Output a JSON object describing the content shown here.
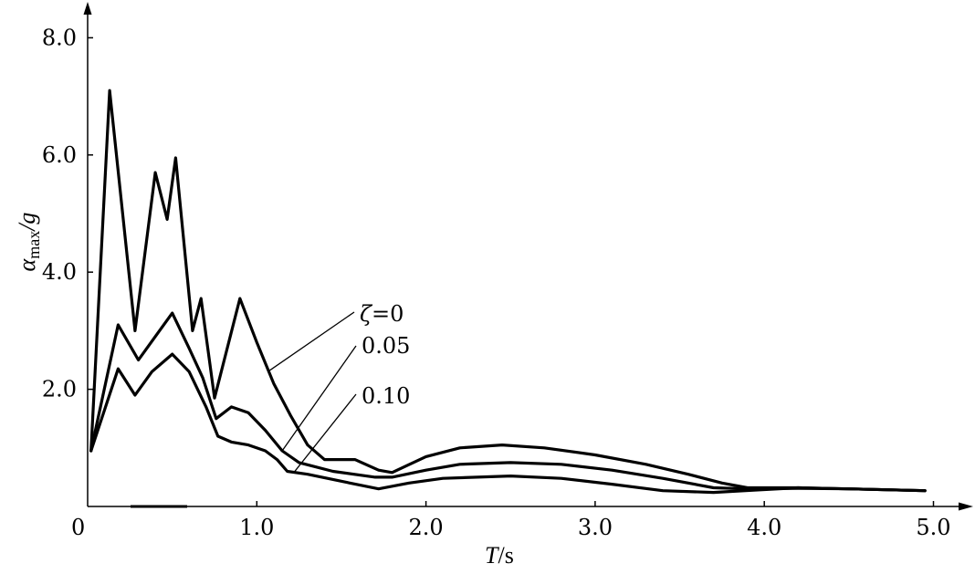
{
  "chart_data": {
    "type": "line",
    "xlabel": {
      "main": "T",
      "unit": "/s"
    },
    "ylabel": {
      "symbol": "α",
      "subscript": "max",
      "suffix": "/g"
    },
    "xlim": [
      0,
      5.2
    ],
    "ylim": [
      0,
      8.6
    ],
    "x_ticks": [
      {
        "value": 1.0,
        "label": "1.0"
      },
      {
        "value": 2.0,
        "label": "2.0"
      },
      {
        "value": 3.0,
        "label": "3.0"
      },
      {
        "value": 4.0,
        "label": "4.0"
      },
      {
        "value": 5.0,
        "label": "5.0"
      }
    ],
    "y_ticks": [
      {
        "value": 2.0,
        "label": "2.0"
      },
      {
        "value": 4.0,
        "label": "4.0"
      },
      {
        "value": 6.0,
        "label": "6.0"
      },
      {
        "value": 8.0,
        "label": "8.0"
      }
    ],
    "origin_label": "0",
    "grid": false,
    "series": [
      {
        "name": "ζ=0",
        "points": [
          [
            0.02,
            0.95
          ],
          [
            0.13,
            7.1
          ],
          [
            0.28,
            3.0
          ],
          [
            0.4,
            5.7
          ],
          [
            0.47,
            4.9
          ],
          [
            0.52,
            5.95
          ],
          [
            0.62,
            3.0
          ],
          [
            0.67,
            3.55
          ],
          [
            0.75,
            1.85
          ],
          [
            0.9,
            3.55
          ],
          [
            1.0,
            2.8
          ],
          [
            1.1,
            2.1
          ],
          [
            1.2,
            1.55
          ],
          [
            1.3,
            1.05
          ],
          [
            1.4,
            0.8
          ],
          [
            1.58,
            0.8
          ],
          [
            1.72,
            0.62
          ],
          [
            1.8,
            0.58
          ],
          [
            2.0,
            0.85
          ],
          [
            2.2,
            1.0
          ],
          [
            2.45,
            1.05
          ],
          [
            2.7,
            1.0
          ],
          [
            3.0,
            0.88
          ],
          [
            3.3,
            0.72
          ],
          [
            3.55,
            0.55
          ],
          [
            3.75,
            0.4
          ],
          [
            3.9,
            0.32
          ],
          [
            4.2,
            0.32
          ],
          [
            4.5,
            0.3
          ],
          [
            4.95,
            0.27
          ]
        ]
      },
      {
        "name": "0.05",
        "points": [
          [
            0.02,
            0.95
          ],
          [
            0.18,
            3.1
          ],
          [
            0.3,
            2.5
          ],
          [
            0.4,
            2.9
          ],
          [
            0.5,
            3.3
          ],
          [
            0.6,
            2.7
          ],
          [
            0.68,
            2.2
          ],
          [
            0.76,
            1.5
          ],
          [
            0.85,
            1.7
          ],
          [
            0.95,
            1.6
          ],
          [
            1.05,
            1.3
          ],
          [
            1.15,
            0.95
          ],
          [
            1.25,
            0.75
          ],
          [
            1.45,
            0.6
          ],
          [
            1.7,
            0.5
          ],
          [
            1.8,
            0.5
          ],
          [
            2.0,
            0.62
          ],
          [
            2.2,
            0.72
          ],
          [
            2.5,
            0.75
          ],
          [
            2.8,
            0.72
          ],
          [
            3.1,
            0.62
          ],
          [
            3.4,
            0.48
          ],
          [
            3.7,
            0.32
          ],
          [
            3.9,
            0.3
          ],
          [
            4.2,
            0.31
          ],
          [
            4.5,
            0.3
          ],
          [
            4.95,
            0.27
          ]
        ]
      },
      {
        "name": "0.10",
        "points": [
          [
            0.02,
            0.95
          ],
          [
            0.18,
            2.35
          ],
          [
            0.28,
            1.9
          ],
          [
            0.38,
            2.3
          ],
          [
            0.5,
            2.6
          ],
          [
            0.6,
            2.3
          ],
          [
            0.7,
            1.7
          ],
          [
            0.77,
            1.2
          ],
          [
            0.85,
            1.1
          ],
          [
            0.95,
            1.05
          ],
          [
            1.05,
            0.95
          ],
          [
            1.12,
            0.8
          ],
          [
            1.18,
            0.6
          ],
          [
            1.3,
            0.55
          ],
          [
            1.55,
            0.4
          ],
          [
            1.72,
            0.3
          ],
          [
            1.9,
            0.4
          ],
          [
            2.1,
            0.48
          ],
          [
            2.5,
            0.52
          ],
          [
            2.8,
            0.48
          ],
          [
            3.1,
            0.38
          ],
          [
            3.4,
            0.27
          ],
          [
            3.7,
            0.24
          ],
          [
            3.95,
            0.28
          ],
          [
            4.2,
            0.32
          ],
          [
            4.5,
            0.3
          ],
          [
            4.95,
            0.27
          ]
        ]
      }
    ]
  }
}
